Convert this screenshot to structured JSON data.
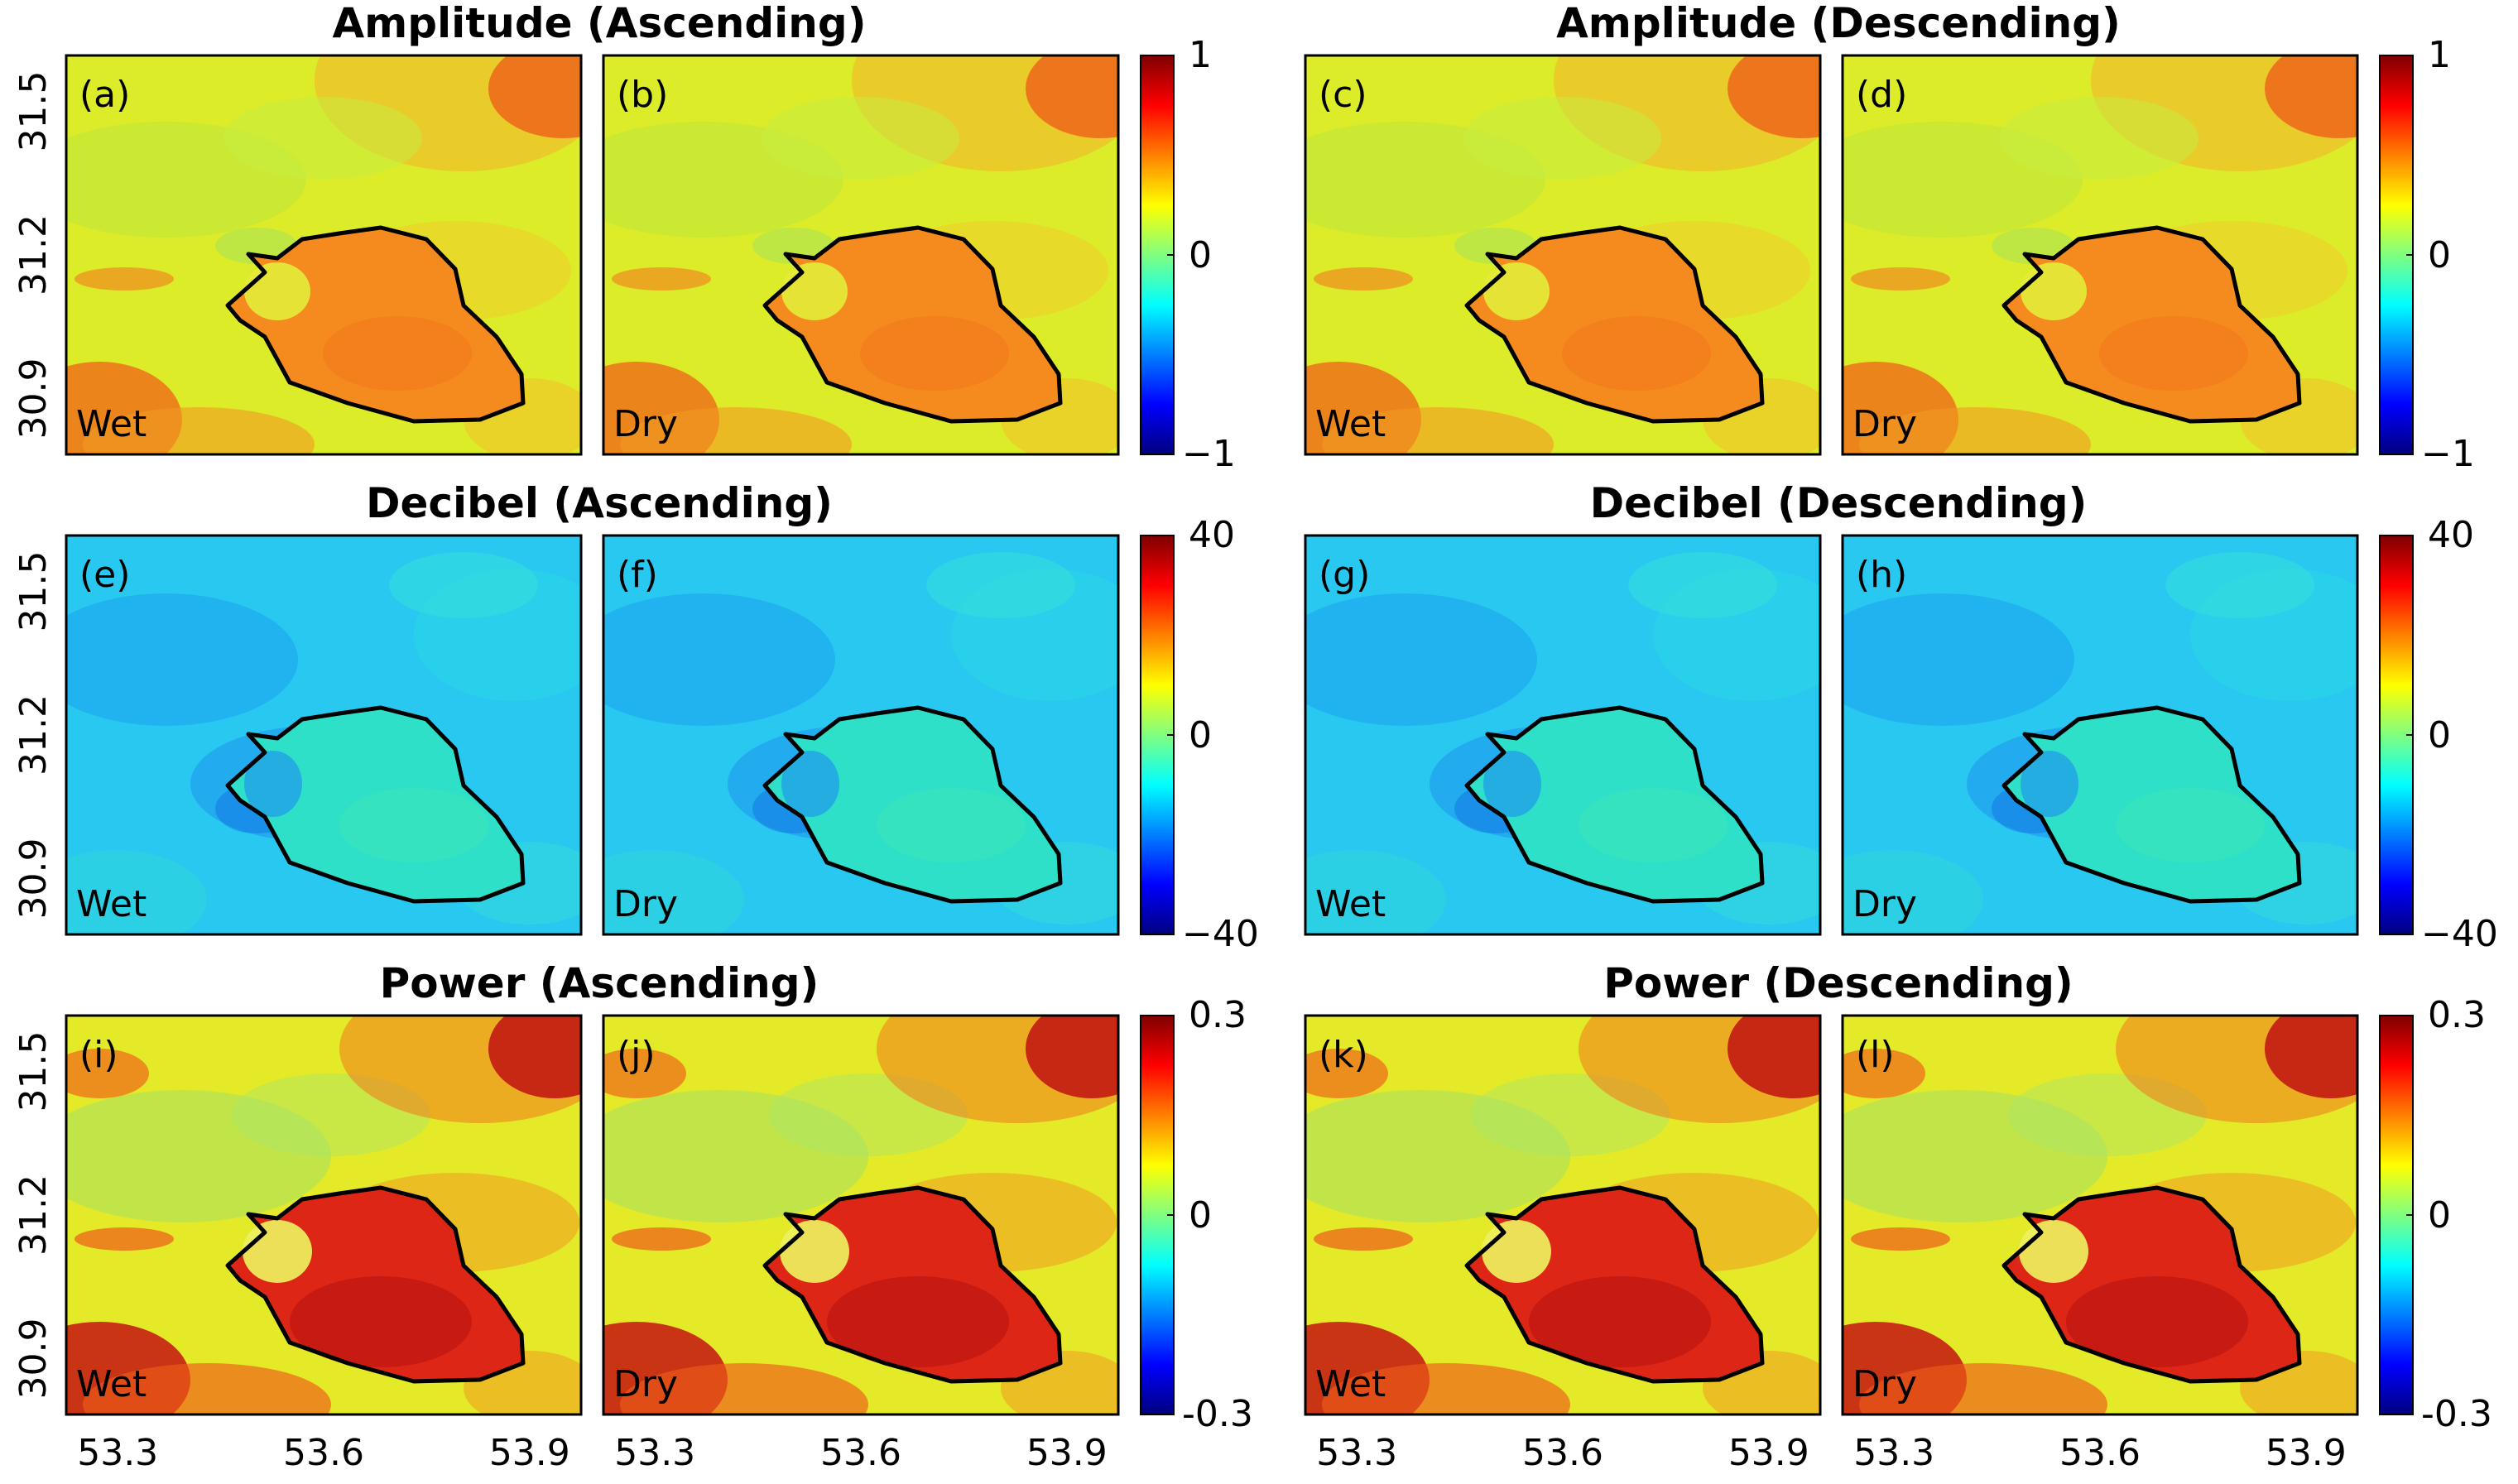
{
  "figure": {
    "groups": [
      {
        "title": "Amplitude (Ascending)",
        "row": 0,
        "col": 0
      },
      {
        "title": "Amplitude (Descending)",
        "row": 0,
        "col": 1
      },
      {
        "title": "Decibel (Ascending)",
        "row": 1,
        "col": 0
      },
      {
        "title": "Decibel (Descending)",
        "row": 1,
        "col": 1
      },
      {
        "title": "Power (Ascending)",
        "row": 2,
        "col": 0
      },
      {
        "title": "Power (Descending)",
        "row": 2,
        "col": 1
      }
    ],
    "panels": [
      {
        "letter": "(a)",
        "season": "Wet",
        "variable": "amplitude",
        "orbit": "ascending"
      },
      {
        "letter": "(b)",
        "season": "Dry",
        "variable": "amplitude",
        "orbit": "ascending"
      },
      {
        "letter": "(c)",
        "season": "Wet",
        "variable": "amplitude",
        "orbit": "descending"
      },
      {
        "letter": "(d)",
        "season": "Dry",
        "variable": "amplitude",
        "orbit": "descending"
      },
      {
        "letter": "(e)",
        "season": "Wet",
        "variable": "decibel",
        "orbit": "ascending"
      },
      {
        "letter": "(f)",
        "season": "Dry",
        "variable": "decibel",
        "orbit": "ascending"
      },
      {
        "letter": "(g)",
        "season": "Wet",
        "variable": "decibel",
        "orbit": "descending"
      },
      {
        "letter": "(h)",
        "season": "Dry",
        "variable": "decibel",
        "orbit": "descending"
      },
      {
        "letter": "(i)",
        "season": "Wet",
        "variable": "power",
        "orbit": "ascending"
      },
      {
        "letter": "(j)",
        "season": "Dry",
        "variable": "power",
        "orbit": "ascending"
      },
      {
        "letter": "(k)",
        "season": "Wet",
        "variable": "power",
        "orbit": "descending"
      },
      {
        "letter": "(l)",
        "season": "Dry",
        "variable": "power",
        "orbit": "descending"
      }
    ],
    "colorbars": {
      "amplitude": {
        "max": "1",
        "mid": "0",
        "min": "−1"
      },
      "decibel": {
        "max": "40",
        "mid": "0",
        "min": "−40"
      },
      "power": {
        "max": "0.3",
        "mid": "0",
        "min": "-0.3"
      }
    },
    "y_ticks": [
      "31.5",
      "31.2",
      "30.9"
    ],
    "x_ticks": [
      "53.3",
      "53.6",
      "53.9"
    ],
    "palette": {
      "amplitude_bg": "#dcec28",
      "decibel_bg": "#28c8f0",
      "power_bg": "#e4ea28",
      "amplitude_basin": "#f58a1e",
      "decibel_basin": "#2ee0c8",
      "power_basin": "#dd2616",
      "outline": "#000000"
    }
  }
}
